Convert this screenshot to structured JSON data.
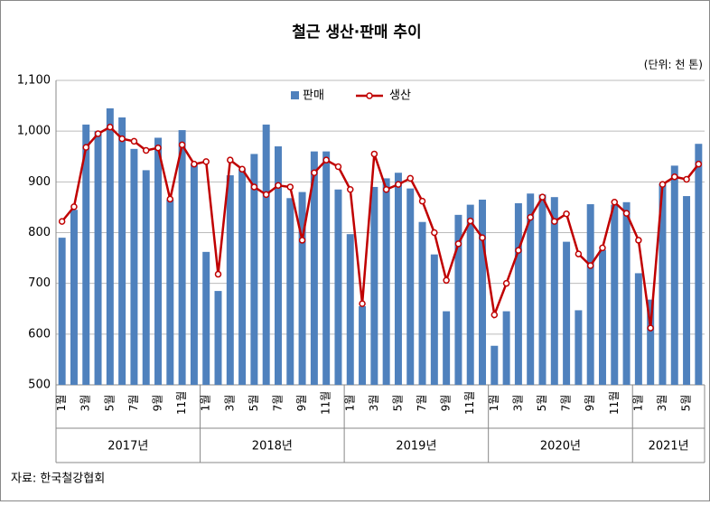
{
  "chart_data": {
    "type": "bar-line",
    "title": "철근 생산·판매 추이",
    "unit_note": "(단위: 천 톤)",
    "source": "자료: 한국철강협회",
    "groups": [
      {
        "name": "2017년",
        "categories": [
          "1월",
          null,
          "3월",
          null,
          "5월",
          null,
          "7월",
          null,
          "9월",
          null,
          "11월",
          null
        ]
      },
      {
        "name": "2018년",
        "categories": [
          "1월",
          null,
          "3월",
          null,
          "5월",
          null,
          "7월",
          null,
          "9월",
          null,
          "11월",
          null
        ]
      },
      {
        "name": "2019년",
        "categories": [
          "1월",
          null,
          "3월",
          null,
          "5월",
          null,
          "7월",
          null,
          "9월",
          null,
          "11월",
          null
        ]
      },
      {
        "name": "2020년",
        "categories": [
          "1월",
          null,
          "3월",
          null,
          "5월",
          null,
          "7월",
          null,
          "9월",
          null,
          "11월",
          null
        ]
      },
      {
        "name": "2021년",
        "categories": [
          "1월",
          null,
          "3월",
          null,
          "5월",
          null
        ]
      }
    ],
    "series": [
      {
        "name": "판매",
        "kind": "bar",
        "color": "#4f81bd",
        "values": [
          790,
          845,
          1013,
          1000,
          1045,
          1027,
          965,
          923,
          987,
          865,
          1002,
          935,
          762,
          685,
          913,
          925,
          955,
          1013,
          970,
          868,
          880,
          960,
          960,
          885,
          797,
          655,
          890,
          907,
          918,
          887,
          821,
          757,
          645,
          835,
          855,
          865,
          577,
          645,
          858,
          877,
          875,
          870,
          782,
          647,
          856,
          766,
          855,
          860,
          720,
          668,
          897,
          932,
          872,
          975
        ]
      },
      {
        "name": "생산",
        "kind": "line",
        "color": "#c00000",
        "values": [
          822,
          851,
          968,
          995,
          1008,
          985,
          980,
          962,
          967,
          866,
          973,
          935,
          940,
          718,
          943,
          925,
          890,
          875,
          893,
          890,
          785,
          918,
          943,
          930,
          885,
          660,
          955,
          885,
          895,
          907,
          862,
          800,
          706,
          778,
          823,
          790,
          638,
          700,
          765,
          830,
          870,
          822,
          837,
          758,
          735,
          770,
          860,
          838,
          785,
          612,
          895,
          910,
          905,
          935
        ]
      }
    ],
    "ylim": [
      500,
      1100
    ],
    "yticks": [
      500,
      600,
      700,
      800,
      900,
      {
        "value": 1000,
        "label": "1,000"
      },
      {
        "value": 1100,
        "label": "1,100"
      }
    ],
    "grid": true
  }
}
